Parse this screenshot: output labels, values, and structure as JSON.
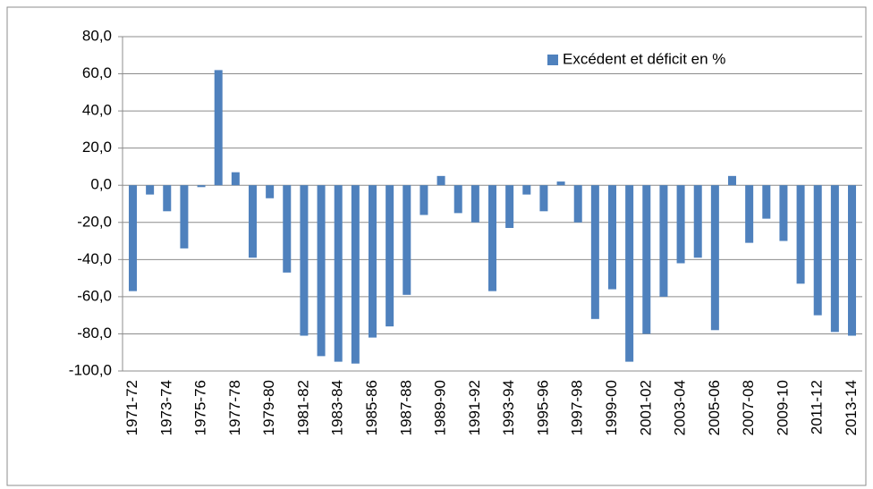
{
  "chart_data": {
    "type": "bar",
    "series": [
      {
        "name": "Excédent et déficit en %",
        "color": "#4f81bd",
        "values": [
          -57,
          -5,
          -14,
          -34,
          -1,
          62,
          7,
          -39,
          -7,
          -47,
          -81,
          -92,
          -95,
          -96,
          -82,
          -76,
          -59,
          -16,
          5,
          -15,
          -20,
          -57,
          -23,
          -5,
          -14,
          2,
          -20,
          -72,
          -56,
          -95,
          -80,
          -60,
          -42,
          -39,
          -78,
          5,
          -31,
          -18,
          -30,
          -53,
          -70,
          -79,
          -81
        ]
      }
    ],
    "categories": [
      "1971-72",
      null,
      "1973-74",
      null,
      "1975-76",
      null,
      "1977-78",
      null,
      "1979-80",
      null,
      "1981-82",
      null,
      "1983-84",
      null,
      "1985-86",
      null,
      "1987-88",
      null,
      "1989-90",
      null,
      "1991-92",
      null,
      "1993-94",
      null,
      "1995-96",
      null,
      "1997-98",
      null,
      "1999-00",
      null,
      "2001-02",
      null,
      "2003-04",
      null,
      "2005-06",
      null,
      "2007-08",
      null,
      "2009-10",
      null,
      "2011-12",
      null,
      "2013-14"
    ],
    "ylim": [
      -100,
      80
    ],
    "yticks": [
      {
        "value": -100,
        "label": "-100,0"
      },
      {
        "value": -80,
        "label": "-80,0"
      },
      {
        "value": -60,
        "label": "-60,0"
      },
      {
        "value": -40,
        "label": "-40,0"
      },
      {
        "value": -20,
        "label": "-20,0"
      },
      {
        "value": 0,
        "label": "0,0"
      },
      {
        "value": 20,
        "label": "20,0"
      },
      {
        "value": 40,
        "label": "40,0"
      },
      {
        "value": 60,
        "label": "60,0"
      },
      {
        "value": 80,
        "label": "80,0"
      }
    ],
    "grid": true,
    "legend": "top-right"
  }
}
